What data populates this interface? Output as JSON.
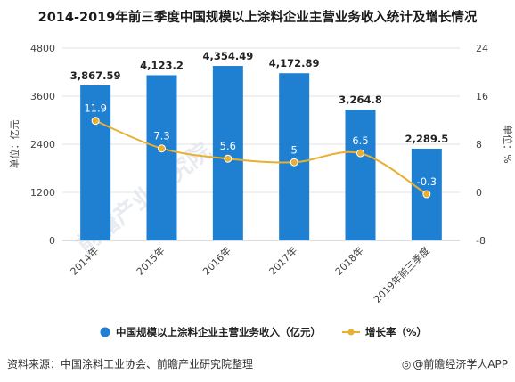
{
  "title": "2014-2019年前三季度中国规模以上涂料企业主营业务收入统计及增长情况",
  "source": "资料来源：中国涂料工业协会、前瞻产业研究院整理",
  "credit": "@前瞻经济学人APP",
  "watermark": "前瞻产业研究院",
  "colors": {
    "bar": "#1f7fd0",
    "line": "#e8b030",
    "grid": "#e3e3e3"
  },
  "chart_data": {
    "type": "bar+line",
    "categories": [
      "2014年",
      "2015年",
      "2016年",
      "2017年",
      "2018年",
      "2019年前三季度"
    ],
    "series": [
      {
        "name": "中国规模以上涂料企业主营业务收入（亿元）",
        "type": "bar",
        "axis": "left",
        "values": [
          3867.59,
          4123.2,
          4354.49,
          4172.89,
          3264.8,
          2289.5
        ],
        "labels": [
          "3,867.59",
          "4,123.2",
          "4,354.49",
          "4,172.89",
          "3,264.8",
          "2,289.5"
        ]
      },
      {
        "name": "增长率（%）",
        "type": "line",
        "axis": "right",
        "values": [
          11.9,
          7.3,
          5.6,
          5,
          6.5,
          -0.3
        ],
        "labels": [
          "11.9",
          "7.3",
          "5.6",
          "5",
          "6.5",
          "-0.3"
        ]
      }
    ],
    "ylabel": "单位：亿元",
    "y2label": "单位：%",
    "ylim": [
      0,
      4800
    ],
    "y2lim": [
      -8,
      24
    ],
    "yticks": [
      "0",
      "1200",
      "2400",
      "3600",
      "4800"
    ],
    "y2ticks": [
      "-8",
      "0",
      "8",
      "16",
      "24"
    ],
    "grid": true,
    "legend_position": "bottom"
  }
}
